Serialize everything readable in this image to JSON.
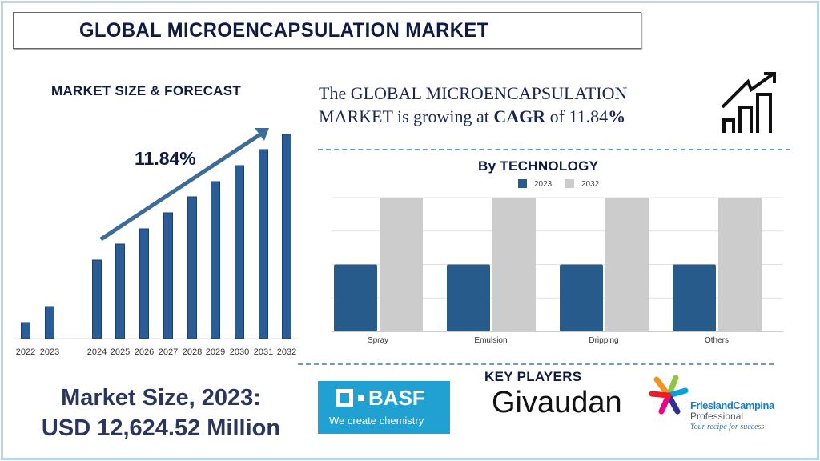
{
  "header": {
    "title": "GLOBAL MICROENCAPSULATION MARKET"
  },
  "cagr_statement": {
    "line1": "The GLOBAL MICROENCAPSULATION",
    "line2_prefix": "MARKET is growing at ",
    "cagr_word": "CAGR",
    "of": " of 11.84",
    "percent": "%"
  },
  "icons": {
    "growth": "bar-chart-growth-arrow-icon"
  },
  "market_size": {
    "line1": "Market Size, 2023:",
    "line2": "USD 12,624.52 Million"
  },
  "key_players": {
    "title": "KEY PLAYERS",
    "basf": {
      "name": "BASF",
      "tagline": "We create chemistry",
      "color": "#21a0d2"
    },
    "givaudan": "Givaudan",
    "friesland": {
      "name": "FrieslandCampina",
      "sub": "Professional",
      "tagline": "Your recipe for success"
    }
  },
  "chart_data": [
    {
      "type": "bar",
      "title": "MARKET SIZE & FORECAST",
      "annotation": "11.84%",
      "categories": [
        "2022",
        "2023",
        "2024",
        "2025",
        "2026",
        "2027",
        "2028",
        "2029",
        "2030",
        "2031",
        "2032"
      ],
      "values": [
        20,
        40,
        98,
        118,
        137,
        157,
        177,
        196,
        216,
        236,
        255
      ],
      "value_note": "relative heights, no axis printed",
      "color": "#2a5d96",
      "grid": false
    },
    {
      "type": "bar",
      "title": "By TECHNOLOGY",
      "categories": [
        "Spray",
        "Emulsion",
        "Dripping",
        "Others"
      ],
      "series": [
        {
          "name": "2023",
          "values": [
            2,
            2,
            2,
            2
          ],
          "color": "#275b8c"
        },
        {
          "name": "2032",
          "values": [
            4,
            4,
            4,
            4
          ],
          "color": "#cccccc"
        }
      ],
      "ylim": [
        0,
        4
      ],
      "grid": true,
      "legend": "top-center"
    }
  ]
}
